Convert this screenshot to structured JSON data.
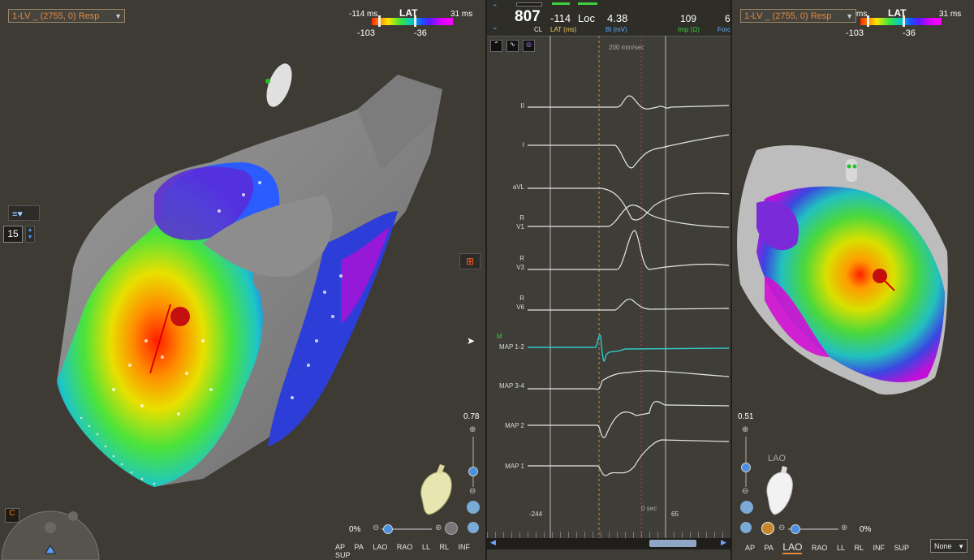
{
  "left_panel": {
    "map_selector": "1-LV _ (2755, 0) Resp",
    "lat_scale": {
      "min_label": "-114 ms",
      "title": "LAT",
      "max_label": "31 ms",
      "low_marker": "-103",
      "high_marker": "-36"
    },
    "counter_value": "15",
    "zoom_value": "0.78",
    "opacity_value": "0%",
    "view_buttons": [
      "AP",
      "PA",
      "LAO",
      "RAO",
      "LL",
      "RL",
      "INF",
      "SUP"
    ]
  },
  "mid_panel": {
    "cl_value": "807",
    "cl_label": "CL",
    "lat_value": "-114",
    "lat_label": "LAT (ms)",
    "loc_label": "Loc",
    "bi_value": "4.38",
    "bi_label": "Bi (mV)",
    "imp_value": "109",
    "imp_label": "Imp (Ω)",
    "force_value": "6",
    "force_label": "Forc",
    "speed_label": "200 mm/sec",
    "channels": [
      {
        "label": "II"
      },
      {
        "label": "I"
      },
      {
        "label": "aVL"
      },
      {
        "label": "R\nV1"
      },
      {
        "label": "R\nV3"
      },
      {
        "label": "R\nV6"
      },
      {
        "label": "MAP 1-2",
        "marker": "M"
      },
      {
        "label": "MAP 3-4"
      },
      {
        "label": "MAP 2"
      },
      {
        "label": "MAP 1"
      }
    ],
    "time_left": "-244",
    "time_zero": "0 sec",
    "time_right": "65"
  },
  "right_panel": {
    "map_selector": "1-LV _ (2755, 0) Resp",
    "lat_scale": {
      "min_label": "ms",
      "title": "LAT",
      "max_label": "31 ms",
      "low_marker": "-103",
      "high_marker": "-36"
    },
    "zoom_value": "0.51",
    "orientation_label": "LAO",
    "opacity_value": "0%",
    "view_buttons": [
      "AP",
      "PA",
      "LAO",
      "RAO",
      "LL",
      "RL",
      "INF",
      "SUP"
    ],
    "active_view": "LAO",
    "bottom_select": "None"
  },
  "colors": {
    "accent_orange": "#e48a3c",
    "map_teal": "#34c9c9",
    "ecg_white": "#e6e6e6"
  }
}
